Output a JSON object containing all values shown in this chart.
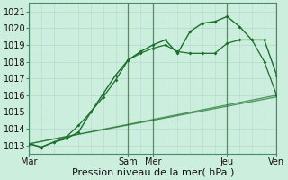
{
  "xlabel": "Pression niveau de la mer( hPa )",
  "bg_color": "#cceedd",
  "plot_bg_color": "#cceedd",
  "grid_color": "#aaddcc",
  "line_color": "#1a6e2a",
  "dark_vline_color": "#5a8a6a",
  "ylim": [
    1012.5,
    1021.5
  ],
  "xlim": [
    0,
    20
  ],
  "xtick_labels": [
    "Mar",
    "Sam",
    "Mer",
    "Jeu",
    "Ven"
  ],
  "xtick_positions": [
    0,
    8,
    10,
    16,
    20
  ],
  "ytick_values": [
    1013,
    1014,
    1015,
    1016,
    1017,
    1018,
    1019,
    1020,
    1021
  ],
  "line1_x": [
    0,
    1,
    2,
    3,
    4,
    5,
    6,
    7,
    8,
    9,
    10,
    11,
    12,
    13,
    14,
    15,
    16,
    17,
    18,
    19,
    20
  ],
  "line1_y": [
    1013.1,
    1012.9,
    1013.2,
    1013.4,
    1013.8,
    1015.0,
    1016.1,
    1017.2,
    1018.1,
    1018.6,
    1019.0,
    1019.3,
    1018.5,
    1019.8,
    1020.3,
    1020.4,
    1020.7,
    1020.1,
    1019.3,
    1019.3,
    1017.2
  ],
  "line2_x": [
    0,
    1,
    2,
    3,
    4,
    5,
    6,
    7,
    8,
    9,
    10,
    11,
    12,
    13,
    14,
    15,
    16,
    17,
    18,
    19,
    20
  ],
  "line2_y": [
    1013.1,
    1012.9,
    1013.2,
    1013.5,
    1014.2,
    1015.0,
    1015.9,
    1016.9,
    1018.1,
    1018.5,
    1018.8,
    1019.0,
    1018.6,
    1018.5,
    1018.5,
    1018.5,
    1019.1,
    1019.3,
    1019.3,
    1018.0,
    1016.0
  ],
  "line3_x": [
    0,
    20
  ],
  "line3_y": [
    1013.1,
    1016.0
  ],
  "line4_x": [
    0,
    20
  ],
  "line4_y": [
    1013.1,
    1015.9
  ],
  "xlabel_fontsize": 8,
  "tick_fontsize": 7
}
